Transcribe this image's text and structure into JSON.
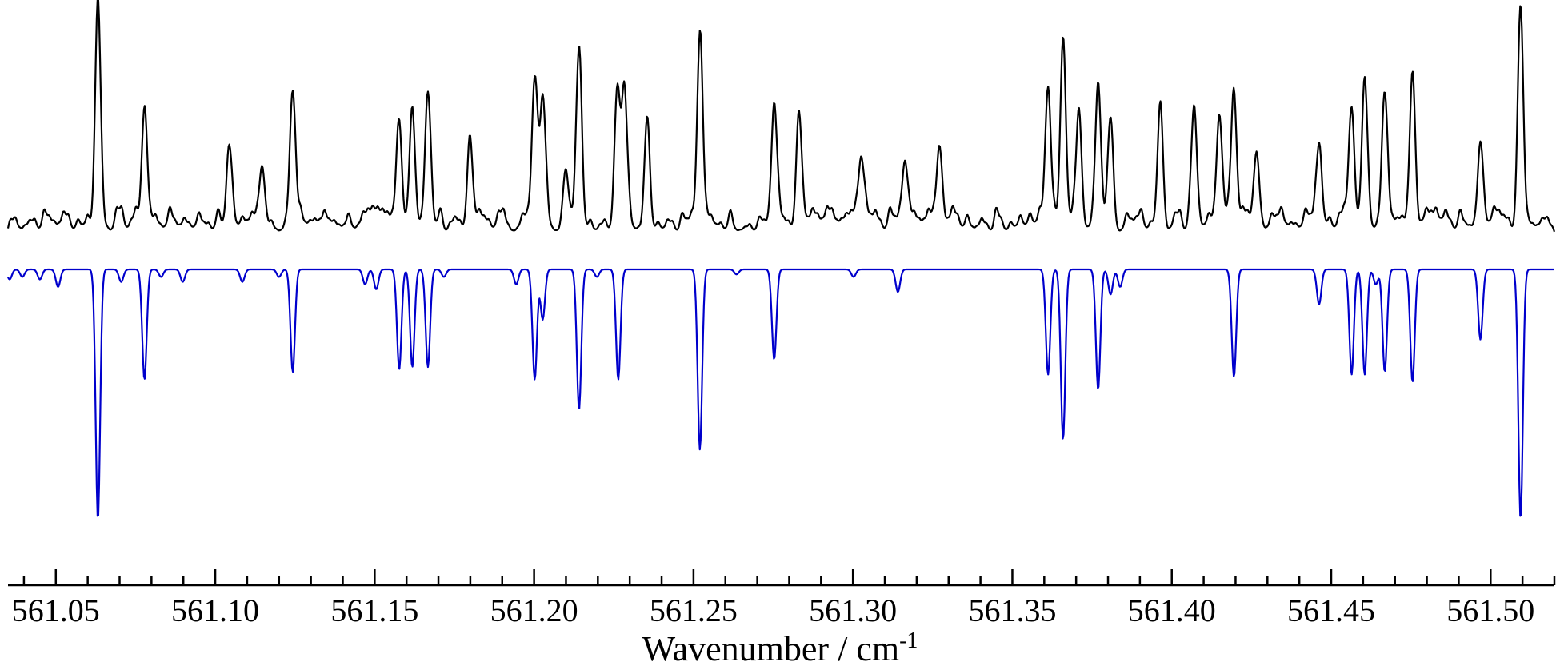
{
  "chart_data": {
    "type": "line",
    "title": "",
    "xlabel": "Wavenumber / cm",
    "xlabel_superscript": "-1",
    "xlim": [
      561.035,
      561.52
    ],
    "major_ticks": [
      561.05,
      561.1,
      561.15,
      561.2,
      561.25,
      561.3,
      561.35,
      561.4,
      561.45,
      561.5
    ],
    "tick_labels": [
      "561.05",
      "561.10",
      "561.15",
      "561.20",
      "561.25",
      "561.30",
      "561.35",
      "561.40",
      "561.45",
      "561.50"
    ],
    "minor_tick_step": 0.01,
    "y_axis_shown": false,
    "series": [
      {
        "color": "#000000",
        "orientation": "upward",
        "baseline": 0.0,
        "peaks": [
          [
            561.0632,
            1.0
          ],
          [
            561.0778,
            0.53
          ],
          [
            561.1045,
            0.31
          ],
          [
            561.1147,
            0.28
          ],
          [
            561.1243,
            0.57
          ],
          [
            561.1577,
            0.48
          ],
          [
            561.1618,
            0.53
          ],
          [
            561.1667,
            0.56
          ],
          [
            561.1799,
            0.33
          ],
          [
            561.2002,
            0.62
          ],
          [
            561.2027,
            0.58
          ],
          [
            561.2099,
            0.28
          ],
          [
            561.2141,
            0.75
          ],
          [
            561.2261,
            0.62
          ],
          [
            561.2283,
            0.62
          ],
          [
            561.2354,
            0.47
          ],
          [
            561.252,
            0.83
          ],
          [
            561.2753,
            0.52
          ],
          [
            561.2831,
            0.45
          ],
          [
            561.3026,
            0.27
          ],
          [
            561.3163,
            0.27
          ],
          [
            561.3271,
            0.38
          ],
          [
            561.3612,
            0.61
          ],
          [
            561.3659,
            0.85
          ],
          [
            561.3709,
            0.5
          ],
          [
            561.3769,
            0.65
          ],
          [
            561.3808,
            0.48
          ],
          [
            561.3964,
            0.55
          ],
          [
            561.407,
            0.54
          ],
          [
            561.4149,
            0.5
          ],
          [
            561.4195,
            0.55
          ],
          [
            561.4266,
            0.35
          ],
          [
            561.4462,
            0.32
          ],
          [
            561.4564,
            0.52
          ],
          [
            561.4605,
            0.64
          ],
          [
            561.4668,
            0.55
          ],
          [
            561.4755,
            0.72
          ],
          [
            561.4968,
            0.4
          ],
          [
            561.5094,
            1.0
          ]
        ]
      },
      {
        "color": "#0000cc",
        "orientation": "downward",
        "baseline": 0.0,
        "peaks": [
          [
            561.0355,
            0.04
          ],
          [
            561.0395,
            0.03
          ],
          [
            561.045,
            0.04
          ],
          [
            561.0507,
            0.07
          ],
          [
            561.0632,
            1.0
          ],
          [
            561.0705,
            0.05
          ],
          [
            561.0778,
            0.44
          ],
          [
            561.083,
            0.03
          ],
          [
            561.0898,
            0.05
          ],
          [
            561.1085,
            0.05
          ],
          [
            561.12,
            0.03
          ],
          [
            561.1243,
            0.41
          ],
          [
            561.147,
            0.06
          ],
          [
            561.1505,
            0.08
          ],
          [
            561.1577,
            0.4
          ],
          [
            561.1618,
            0.39
          ],
          [
            561.1667,
            0.39
          ],
          [
            561.1717,
            0.03
          ],
          [
            561.1944,
            0.06
          ],
          [
            561.2002,
            0.44
          ],
          [
            561.2027,
            0.2
          ],
          [
            561.2141,
            0.56
          ],
          [
            561.2197,
            0.03
          ],
          [
            561.2264,
            0.44
          ],
          [
            561.252,
            0.72
          ],
          [
            561.2635,
            0.02
          ],
          [
            561.2753,
            0.36
          ],
          [
            561.3002,
            0.03
          ],
          [
            561.3141,
            0.09
          ],
          [
            561.3612,
            0.42
          ],
          [
            561.3659,
            0.68
          ],
          [
            561.3769,
            0.48
          ],
          [
            561.3808,
            0.1
          ],
          [
            561.3838,
            0.07
          ],
          [
            561.4195,
            0.43
          ],
          [
            561.4462,
            0.14
          ],
          [
            561.4564,
            0.42
          ],
          [
            561.4605,
            0.42
          ],
          [
            561.464,
            0.06
          ],
          [
            561.4668,
            0.41
          ],
          [
            561.4755,
            0.45
          ],
          [
            561.4968,
            0.28
          ],
          [
            561.5094,
            1.0
          ]
        ]
      }
    ]
  }
}
